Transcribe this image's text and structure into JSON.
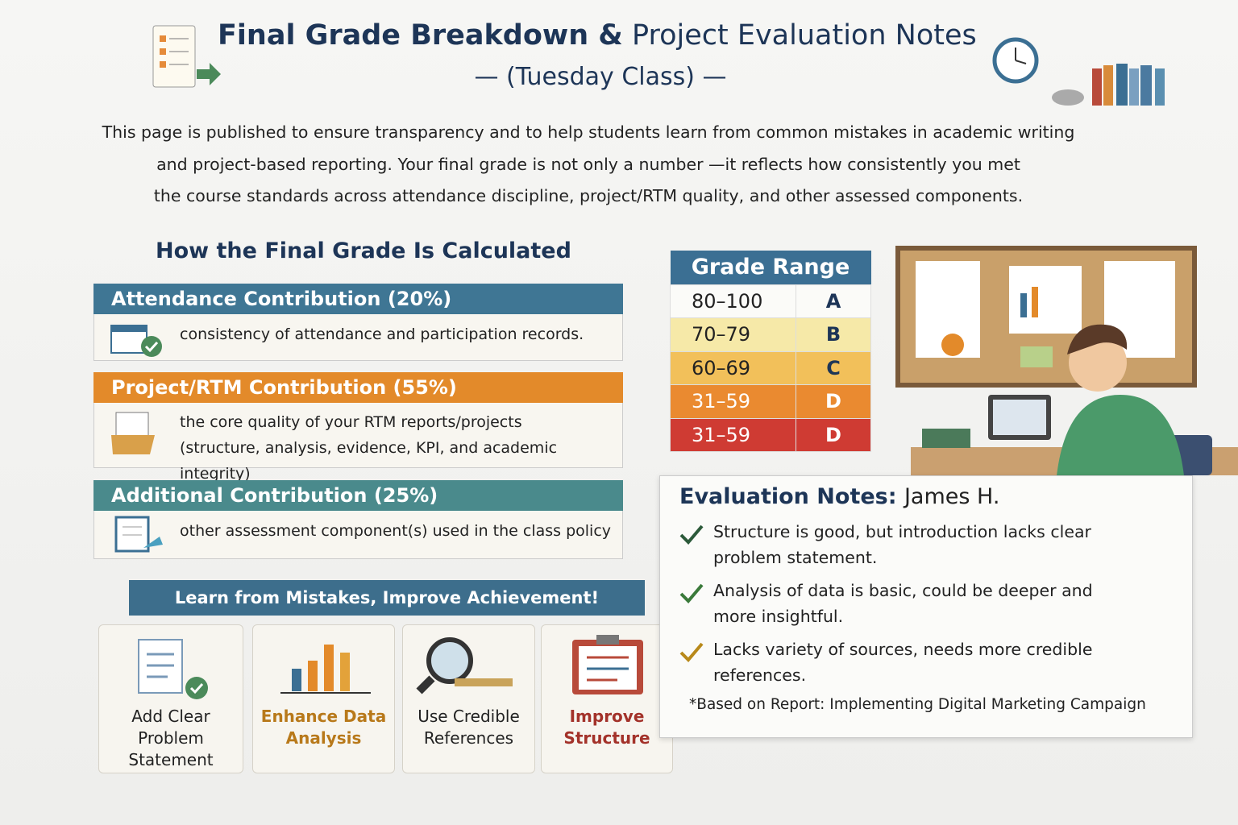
{
  "header": {
    "title_bold": "Final Grade Breakdown &",
    "title_rest": "Project Evaluation Notes",
    "subtitle": "— (Tuesday Class) —"
  },
  "intro": [
    "This page is published to ensure transparency and to help students learn from common mistakes in academic writing",
    "and project-based reporting. Your final grade is not only a number —it reflects how consistently you met",
    "the course standards across attendance discipline, project/RTM quality, and other assessed components."
  ],
  "calculation": {
    "heading": "How the Final Grade Is Calculated",
    "components": [
      {
        "title": "Attendance Contribution (20%)",
        "description": [
          "consistency of attendance and participation records."
        ]
      },
      {
        "title": "Project/RTM Contribution (55%)",
        "description": [
          "the core quality of your RTM reports/projects",
          "(structure, analysis, evidence, KPI, and academic integrity)"
        ]
      },
      {
        "title": "Additional Contribution (25%)",
        "description": [
          "other assessment component(s) used in the class policy"
        ]
      }
    ]
  },
  "grade_table": {
    "header": "Grade Range",
    "rows": [
      [
        "80–100",
        "A"
      ],
      [
        "70–79",
        "B"
      ],
      [
        "60–69",
        "C"
      ],
      [
        "31–59",
        "D"
      ],
      [
        "31–59",
        "D"
      ]
    ]
  },
  "banner": "Learn from Mistakes, Improve Achievement!",
  "tips": [
    "Add Clear Problem Statement",
    "Enhance Data Analysis",
    "Use Credible References",
    "Improve Structure"
  ],
  "evaluation": {
    "heading": "Evaluation Notes:",
    "student": "James H.",
    "notes": [
      "Structure is good, but introduction lacks clear problem statement.",
      "Analysis of data is basic, could be deeper and more insightful.",
      "Lacks variety of sources, needs more credible references."
    ],
    "footnote": "*Based on Report: Implementing Digital Marketing Campaign"
  }
}
